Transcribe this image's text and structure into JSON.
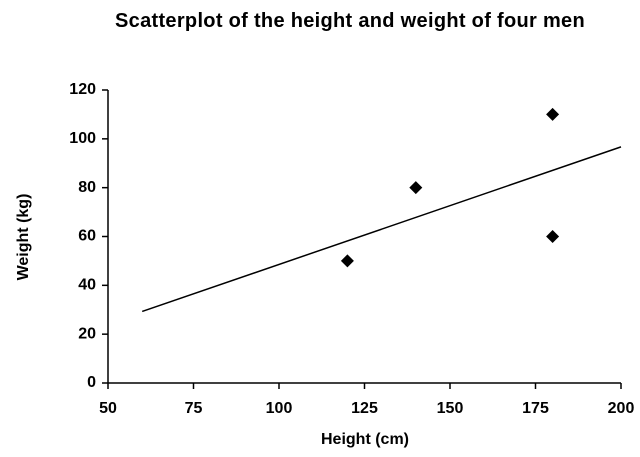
{
  "chart_data": {
    "type": "scatter",
    "title": "Scatterplot of the height and weight of four men",
    "x_label": "Height (cm)",
    "y_label": "Weight (kg)",
    "x": [
      120,
      140,
      180,
      180
    ],
    "values": [
      50,
      80,
      110,
      60
    ],
    "color": "#000000",
    "trendline": {
      "x": [
        60,
        200
      ],
      "values": [
        29.3,
        96.7
      ]
    },
    "xlim": [
      50,
      200
    ],
    "xticks": [
      50,
      75,
      100,
      125,
      150,
      175,
      200
    ],
    "ylim": [
      0,
      120
    ],
    "yticks": [
      0,
      20,
      40,
      60,
      80,
      100,
      120
    ],
    "grid": false
  }
}
